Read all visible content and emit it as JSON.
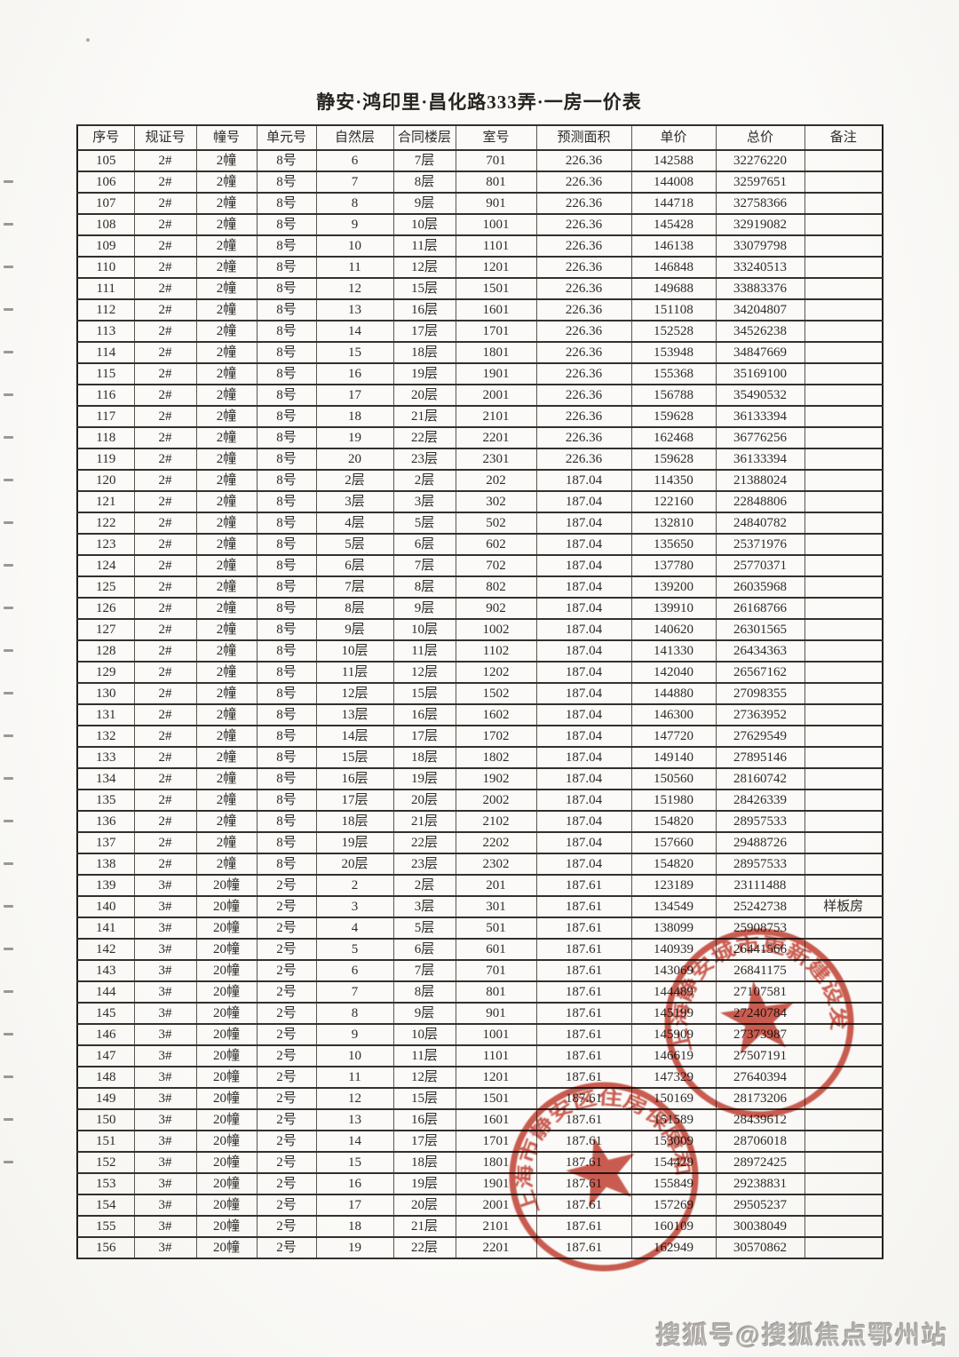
{
  "page": {
    "title": "静安·鸿印里·昌化路333弄·一房一价表"
  },
  "table": {
    "headers": [
      "序号",
      "规证号",
      "幢号",
      "单元号",
      "自然层",
      "合同楼层",
      "室号",
      "预测面积",
      "单价",
      "总价",
      "备注"
    ],
    "rows": [
      [
        "105",
        "2#",
        "2幢",
        "8号",
        "6",
        "7层",
        "701",
        "226.36",
        "142588",
        "32276220",
        ""
      ],
      [
        "106",
        "2#",
        "2幢",
        "8号",
        "7",
        "8层",
        "801",
        "226.36",
        "144008",
        "32597651",
        ""
      ],
      [
        "107",
        "2#",
        "2幢",
        "8号",
        "8",
        "9层",
        "901",
        "226.36",
        "144718",
        "32758366",
        ""
      ],
      [
        "108",
        "2#",
        "2幢",
        "8号",
        "9",
        "10层",
        "1001",
        "226.36",
        "145428",
        "32919082",
        ""
      ],
      [
        "109",
        "2#",
        "2幢",
        "8号",
        "10",
        "11层",
        "1101",
        "226.36",
        "146138",
        "33079798",
        ""
      ],
      [
        "110",
        "2#",
        "2幢",
        "8号",
        "11",
        "12层",
        "1201",
        "226.36",
        "146848",
        "33240513",
        ""
      ],
      [
        "111",
        "2#",
        "2幢",
        "8号",
        "12",
        "15层",
        "1501",
        "226.36",
        "149688",
        "33883376",
        ""
      ],
      [
        "112",
        "2#",
        "2幢",
        "8号",
        "13",
        "16层",
        "1601",
        "226.36",
        "151108",
        "34204807",
        ""
      ],
      [
        "113",
        "2#",
        "2幢",
        "8号",
        "14",
        "17层",
        "1701",
        "226.36",
        "152528",
        "34526238",
        ""
      ],
      [
        "114",
        "2#",
        "2幢",
        "8号",
        "15",
        "18层",
        "1801",
        "226.36",
        "153948",
        "34847669",
        ""
      ],
      [
        "115",
        "2#",
        "2幢",
        "8号",
        "16",
        "19层",
        "1901",
        "226.36",
        "155368",
        "35169100",
        ""
      ],
      [
        "116",
        "2#",
        "2幢",
        "8号",
        "17",
        "20层",
        "2001",
        "226.36",
        "156788",
        "35490532",
        ""
      ],
      [
        "117",
        "2#",
        "2幢",
        "8号",
        "18",
        "21层",
        "2101",
        "226.36",
        "159628",
        "36133394",
        ""
      ],
      [
        "118",
        "2#",
        "2幢",
        "8号",
        "19",
        "22层",
        "2201",
        "226.36",
        "162468",
        "36776256",
        ""
      ],
      [
        "119",
        "2#",
        "2幢",
        "8号",
        "20",
        "23层",
        "2301",
        "226.36",
        "159628",
        "36133394",
        ""
      ],
      [
        "120",
        "2#",
        "2幢",
        "8号",
        "2层",
        "2层",
        "202",
        "187.04",
        "114350",
        "21388024",
        ""
      ],
      [
        "121",
        "2#",
        "2幢",
        "8号",
        "3层",
        "3层",
        "302",
        "187.04",
        "122160",
        "22848806",
        ""
      ],
      [
        "122",
        "2#",
        "2幢",
        "8号",
        "4层",
        "5层",
        "502",
        "187.04",
        "132810",
        "24840782",
        ""
      ],
      [
        "123",
        "2#",
        "2幢",
        "8号",
        "5层",
        "6层",
        "602",
        "187.04",
        "135650",
        "25371976",
        ""
      ],
      [
        "124",
        "2#",
        "2幢",
        "8号",
        "6层",
        "7层",
        "702",
        "187.04",
        "137780",
        "25770371",
        ""
      ],
      [
        "125",
        "2#",
        "2幢",
        "8号",
        "7层",
        "8层",
        "802",
        "187.04",
        "139200",
        "26035968",
        ""
      ],
      [
        "126",
        "2#",
        "2幢",
        "8号",
        "8层",
        "9层",
        "902",
        "187.04",
        "139910",
        "26168766",
        ""
      ],
      [
        "127",
        "2#",
        "2幢",
        "8号",
        "9层",
        "10层",
        "1002",
        "187.04",
        "140620",
        "26301565",
        ""
      ],
      [
        "128",
        "2#",
        "2幢",
        "8号",
        "10层",
        "11层",
        "1102",
        "187.04",
        "141330",
        "26434363",
        ""
      ],
      [
        "129",
        "2#",
        "2幢",
        "8号",
        "11层",
        "12层",
        "1202",
        "187.04",
        "142040",
        "26567162",
        ""
      ],
      [
        "130",
        "2#",
        "2幢",
        "8号",
        "12层",
        "15层",
        "1502",
        "187.04",
        "144880",
        "27098355",
        ""
      ],
      [
        "131",
        "2#",
        "2幢",
        "8号",
        "13层",
        "16层",
        "1602",
        "187.04",
        "146300",
        "27363952",
        ""
      ],
      [
        "132",
        "2#",
        "2幢",
        "8号",
        "14层",
        "17层",
        "1702",
        "187.04",
        "147720",
        "27629549",
        ""
      ],
      [
        "133",
        "2#",
        "2幢",
        "8号",
        "15层",
        "18层",
        "1802",
        "187.04",
        "149140",
        "27895146",
        ""
      ],
      [
        "134",
        "2#",
        "2幢",
        "8号",
        "16层",
        "19层",
        "1902",
        "187.04",
        "150560",
        "28160742",
        ""
      ],
      [
        "135",
        "2#",
        "2幢",
        "8号",
        "17层",
        "20层",
        "2002",
        "187.04",
        "151980",
        "28426339",
        ""
      ],
      [
        "136",
        "2#",
        "2幢",
        "8号",
        "18层",
        "21层",
        "2102",
        "187.04",
        "154820",
        "28957533",
        ""
      ],
      [
        "137",
        "2#",
        "2幢",
        "8号",
        "19层",
        "22层",
        "2202",
        "187.04",
        "157660",
        "29488726",
        ""
      ],
      [
        "138",
        "2#",
        "2幢",
        "8号",
        "20层",
        "23层",
        "2302",
        "187.04",
        "154820",
        "28957533",
        ""
      ],
      [
        "139",
        "3#",
        "20幢",
        "2号",
        "2",
        "2层",
        "201",
        "187.61",
        "123189",
        "23111488",
        ""
      ],
      [
        "140",
        "3#",
        "20幢",
        "2号",
        "3",
        "3层",
        "301",
        "187.61",
        "134549",
        "25242738",
        "样板房"
      ],
      [
        "141",
        "3#",
        "20幢",
        "2号",
        "4",
        "5层",
        "501",
        "187.61",
        "138099",
        "25908753",
        ""
      ],
      [
        "142",
        "3#",
        "20幢",
        "2号",
        "5",
        "6层",
        "601",
        "187.61",
        "140939",
        "26441566",
        ""
      ],
      [
        "143",
        "3#",
        "20幢",
        "2号",
        "6",
        "7层",
        "701",
        "187.61",
        "143069",
        "26841175",
        ""
      ],
      [
        "144",
        "3#",
        "20幢",
        "2号",
        "7",
        "8层",
        "801",
        "187.61",
        "144489",
        "27107581",
        ""
      ],
      [
        "145",
        "3#",
        "20幢",
        "2号",
        "8",
        "9层",
        "901",
        "187.61",
        "145199",
        "27240784",
        ""
      ],
      [
        "146",
        "3#",
        "20幢",
        "2号",
        "9",
        "10层",
        "1001",
        "187.61",
        "145909",
        "27373987",
        ""
      ],
      [
        "147",
        "3#",
        "20幢",
        "2号",
        "10",
        "11层",
        "1101",
        "187.61",
        "146619",
        "27507191",
        ""
      ],
      [
        "148",
        "3#",
        "20幢",
        "2号",
        "11",
        "12层",
        "1201",
        "187.61",
        "147329",
        "27640394",
        ""
      ],
      [
        "149",
        "3#",
        "20幢",
        "2号",
        "12",
        "15层",
        "1501",
        "187.61",
        "150169",
        "28173206",
        ""
      ],
      [
        "150",
        "3#",
        "20幢",
        "2号",
        "13",
        "16层",
        "1601",
        "187.61",
        "151589",
        "28439612",
        ""
      ],
      [
        "151",
        "3#",
        "20幢",
        "2号",
        "14",
        "17层",
        "1701",
        "187.61",
        "153009",
        "28706018",
        ""
      ],
      [
        "152",
        "3#",
        "20幢",
        "2号",
        "15",
        "18层",
        "1801",
        "187.61",
        "154429",
        "28972425",
        ""
      ],
      [
        "153",
        "3#",
        "20幢",
        "2号",
        "16",
        "19层",
        "1901",
        "187.61",
        "155849",
        "29238831",
        ""
      ],
      [
        "154",
        "3#",
        "20幢",
        "2号",
        "17",
        "20层",
        "2001",
        "187.61",
        "157269",
        "29505237",
        ""
      ],
      [
        "155",
        "3#",
        "20幢",
        "2号",
        "18",
        "21层",
        "2101",
        "187.61",
        "160109",
        "30038049",
        ""
      ],
      [
        "156",
        "3#",
        "20幢",
        "2号",
        "19",
        "22层",
        "2201",
        "187.61",
        "162949",
        "30570862",
        ""
      ]
    ]
  },
  "stamps": [
    {
      "name": "developer-company-seal",
      "text": "上海静安城市更新建设发展有限公司",
      "color": "#c23a2b"
    },
    {
      "name": "district-authority-seal",
      "text": "上海市静安区住房保障和房屋管理局",
      "color": "#c23a2b"
    }
  ],
  "watermark": {
    "text": "搜狐号@搜狐焦点鄂州站"
  }
}
